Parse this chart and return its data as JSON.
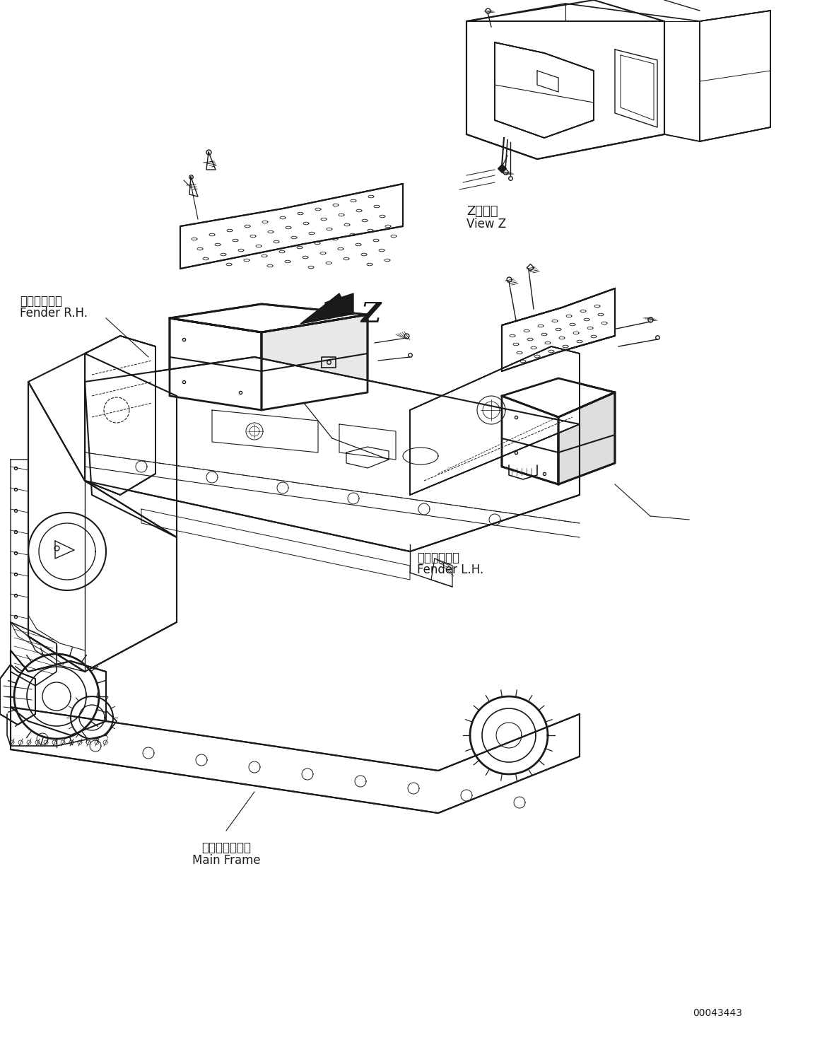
{
  "bg_color": "#ffffff",
  "line_color": "#1a1a1a",
  "fig_width": 11.63,
  "fig_height": 14.71,
  "dpi": 100,
  "labels": {
    "fender_rh_jp": "フェンダ　右",
    "fender_rh_en": "Fender R.H.",
    "fender_lh_jp": "フェンダ　左",
    "fender_lh_en": "Fender L.H.",
    "mainframe_jp": "メインフレーム",
    "mainframe_en": "Main Frame",
    "view_z_jp": "Z　　視",
    "view_z_en": "View Z",
    "z_label": "Z",
    "part_number": "00043443"
  }
}
